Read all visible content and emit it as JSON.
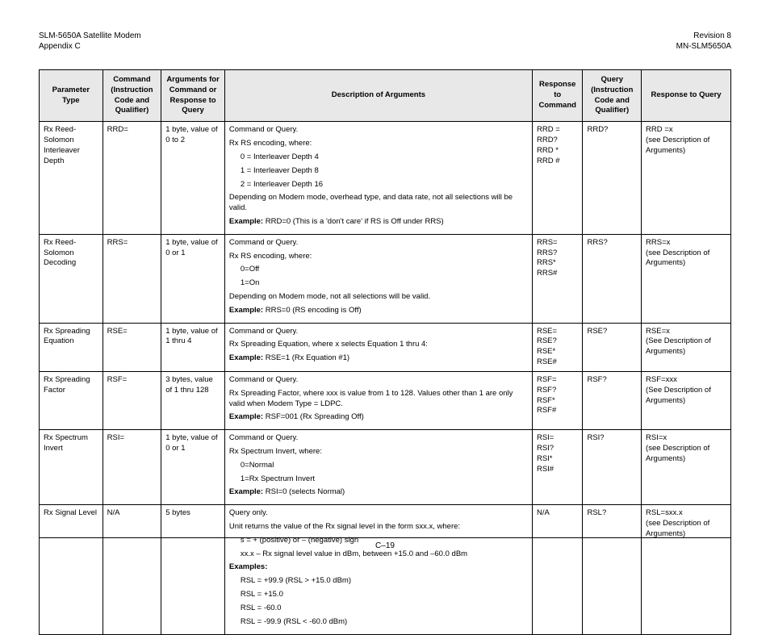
{
  "header": {
    "left1": "SLM-5650A Satellite Modem",
    "left2": "Appendix C",
    "right1": "Revision 8",
    "right2": "MN-SLM5650A"
  },
  "columns": [
    "Parameter Type",
    "Command (Instruction Code and Qualifier)",
    "Arguments for Command or Response to Query",
    "Description of Arguments",
    "Response to Command",
    "Query (Instruction Code and Qualifier)",
    "Response to Query"
  ],
  "rows": [
    {
      "param": "Rx Reed-Solomon Interleaver Depth",
      "cmd": "RRD=",
      "args": "1 byte, value of 0 to 2",
      "desc": [
        {
          "t": "Command or Query."
        },
        {
          "t": "Rx RS encoding, where:"
        },
        {
          "t": "0 = Interleaver Depth 4",
          "ind": true
        },
        {
          "t": "1 = Interleaver Depth 8",
          "ind": true
        },
        {
          "t": "2 = Interleaver Depth 16",
          "ind": true
        },
        {
          "t": "Depending on Modem mode, overhead type, and data rate, not all selections will be valid."
        },
        {
          "b": "Example:",
          "t": " RRD=0  (This is a 'don't care' if RS is Off under RRS)"
        }
      ],
      "resp": "RRD =\nRRD?\nRRD *\nRRD #",
      "query": "RRD?",
      "qresp": "RRD =x\n(see Description of Arguments)"
    },
    {
      "param": "Rx Reed-Solomon Decoding",
      "cmd": "RRS=",
      "args": "1 byte, value of 0 or 1",
      "desc": [
        {
          "t": "Command or Query."
        },
        {
          "t": "Rx RS encoding, where:"
        },
        {
          "t": "0=Off",
          "ind": true
        },
        {
          "t": "1=On",
          "ind": true
        },
        {
          "t": "Depending on Modem mode, not all selections will be valid."
        },
        {
          "b": "Example:",
          "t": " RRS=0 (RS encoding is Off)"
        }
      ],
      "resp": "RRS=\nRRS?\nRRS*\nRRS#",
      "query": "RRS?",
      "qresp": "RRS=x\n(see Description of Arguments)"
    },
    {
      "param": "Rx Spreading Equation",
      "cmd": "RSE=",
      "args": "1 byte, value of 1 thru 4",
      "desc": [
        {
          "t": "Command or Query."
        },
        {
          "t": "Rx Spreading Equation, where x selects Equation 1 thru 4:"
        },
        {
          "b": "Example:",
          "t": " RSE=1 (Rx Equation #1)"
        }
      ],
      "resp": "RSE=\nRSE?\nRSE*\nRSE#",
      "query": "RSE?",
      "qresp": "RSE=x\n(See Description of Arguments)"
    },
    {
      "param": "Rx Spreading Factor",
      "cmd": "RSF=",
      "args": "3 bytes, value of 1 thru 128",
      "desc": [
        {
          "t": "Command or Query."
        },
        {
          "t": "Rx Spreading Factor, where xxx is value from 1 to 128.  Values other than 1 are only valid when Modem Type = LDPC."
        },
        {
          "b": "Example:",
          "t": " RSF=001 (Rx Spreading Off)"
        }
      ],
      "resp": "RSF=\nRSF?\nRSF*\nRSF#",
      "query": "RSF?",
      "qresp": "RSF=xxx\n(See Description of Arguments)"
    },
    {
      "param": "Rx Spectrum Invert",
      "cmd": "RSI=",
      "args": "1 byte, value of 0 or 1",
      "desc": [
        {
          "t": "Command or Query."
        },
        {
          "t": "Rx Spectrum Invert, where:"
        },
        {
          "t": "0=Normal",
          "ind": true
        },
        {
          "t": "1=Rx Spectrum Invert",
          "ind": true
        },
        {
          "b": "Example:",
          "t": " RSI=0 (selects Normal)"
        }
      ],
      "resp": "RSI=\nRSI?\nRSI*\nRSI#",
      "query": "RSI?",
      "qresp": "RSI=x\n(see Description of Arguments)"
    },
    {
      "param": "Rx Signal Level",
      "cmd": "N/A",
      "args": "5 bytes",
      "desc": [
        {
          "t": "Query only."
        },
        {
          "t": "Unit returns the value of the Rx signal level in the form sxx.x, where:"
        },
        {
          "t": "s = + (positive) or – (negative) sign",
          "ind": true
        },
        {
          "t": "xx.x – Rx signal level value in dBm, between +15.0 and –60.0 dBm",
          "ind": true
        },
        {
          "b": "Examples:",
          "t": ""
        },
        {
          "t": "RSL = +99.9 (RSL > +15.0 dBm)",
          "ind": true
        },
        {
          "t": "RSL = +15.0",
          "ind": true
        },
        {
          "t": "RSL = -60.0",
          "ind": true
        },
        {
          "t": "RSL = -99.9 (RSL < -60.0 dBm)",
          "ind": true
        }
      ],
      "resp": "N/A",
      "query": "RSL?",
      "qresp": "RSL=sxx.x\n(see Description of Arguments)"
    }
  ],
  "footer": "C–19"
}
